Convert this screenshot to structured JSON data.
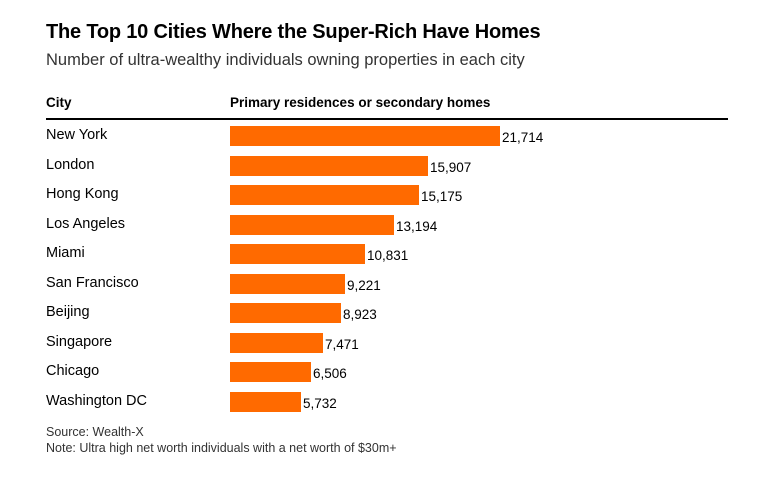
{
  "title": "The Top 10 Cities Where the Super-Rich Have Homes",
  "subtitle": "Number of ultra-wealthy individuals owning properties in each city",
  "columns": {
    "city": "City",
    "value": "Primary residences or secondary homes"
  },
  "colors": {
    "bar": "#ff6a00",
    "text": "#000000"
  },
  "footer": {
    "source": "Source: Wealth-X",
    "note": "Note: Ultra high net worth individuals with a net worth of $30m+"
  },
  "chart_data": {
    "type": "bar",
    "orientation": "horizontal",
    "categories": [
      "New York",
      "London",
      "Hong Kong",
      "Los Angeles",
      "Miami",
      "San Francisco",
      "Beijing",
      "Singapore",
      "Chicago",
      "Washington DC"
    ],
    "values": [
      21714,
      15907,
      15175,
      13194,
      10831,
      9221,
      8923,
      7471,
      6506,
      5732
    ],
    "value_labels": [
      "21,714",
      "15,907",
      "15,175",
      "13,194",
      "10,831",
      "9,221",
      "8,923",
      "7,471",
      "6,506",
      "5,732"
    ],
    "xlim": [
      0,
      21714
    ],
    "grid": false,
    "legend": "none"
  }
}
